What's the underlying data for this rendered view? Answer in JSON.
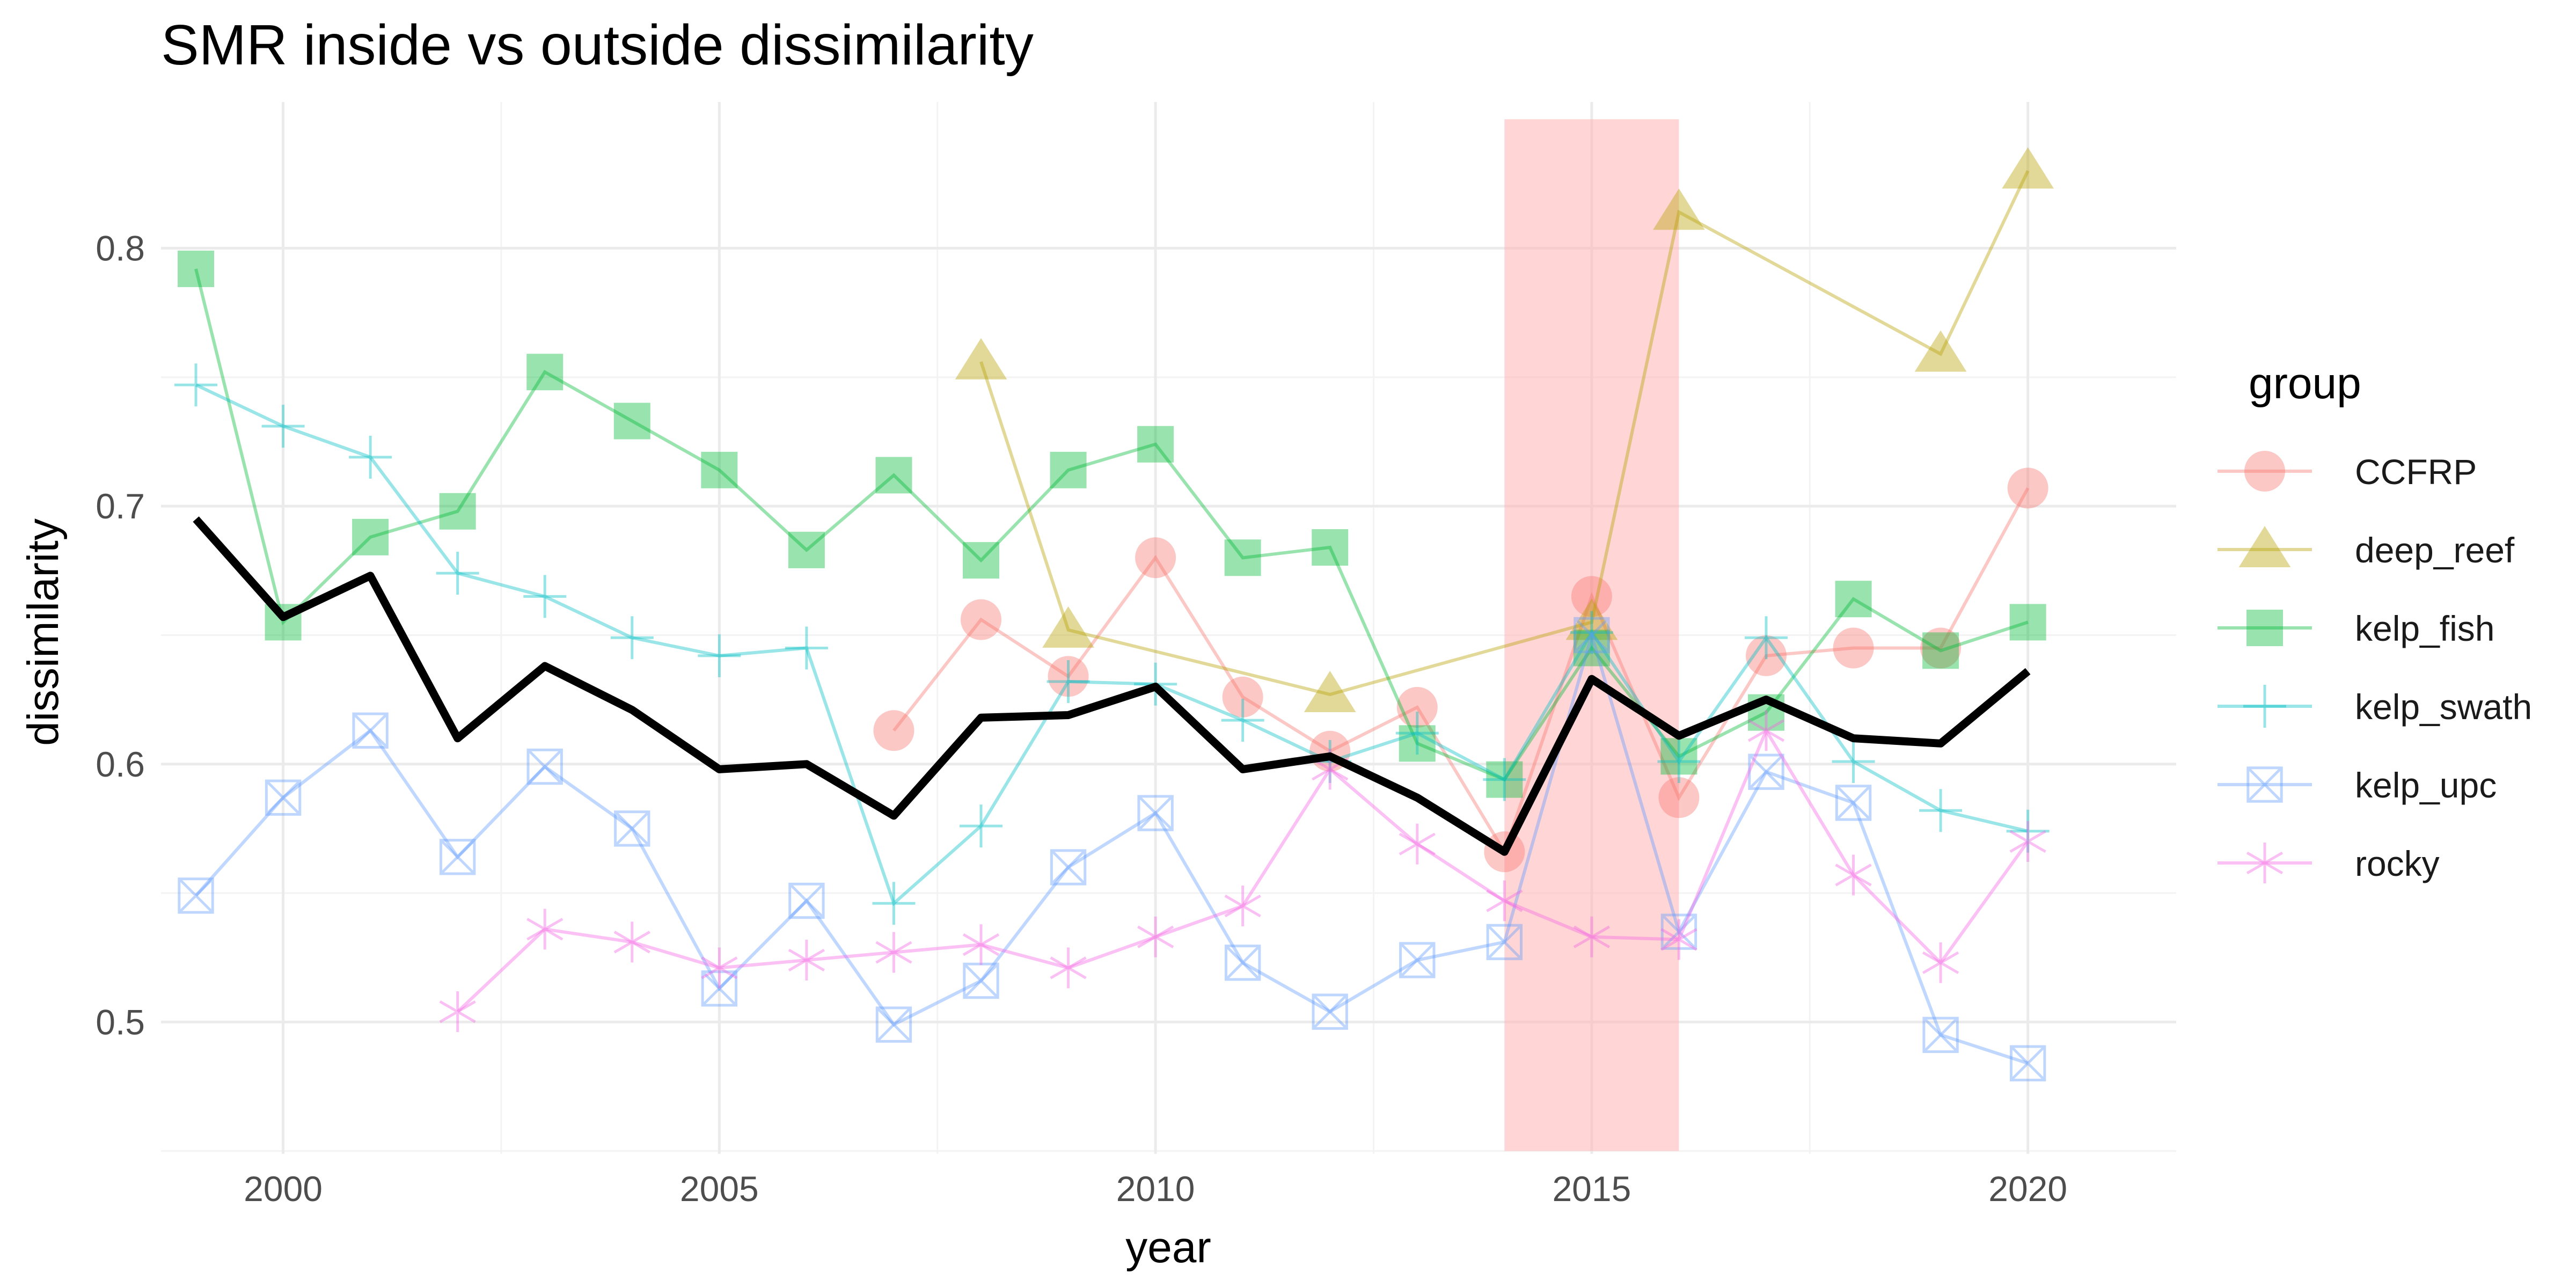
{
  "chart_data": {
    "type": "line",
    "title": "SMR inside vs outside dissimilarity",
    "xlabel": "year",
    "ylabel": "dissimilarity",
    "xlim": [
      1998.6,
      2021.7
    ],
    "ylim": [
      0.4489,
      0.8567
    ],
    "x_ticks": [
      2000,
      2005,
      2010,
      2015,
      2020
    ],
    "y_ticks": [
      0.5,
      0.6,
      0.7,
      0.8
    ],
    "grid": true,
    "legend_title": "group",
    "legend_position": "right",
    "shaded_region": {
      "x_start": 2014,
      "x_end": 2016,
      "color": "#ffb3b3"
    },
    "series": [
      {
        "name": "CCFRP",
        "color": "#F8766D",
        "shape": "circle",
        "points": [
          [
            2007,
            0.613
          ],
          [
            2008,
            0.656
          ],
          [
            2009,
            0.634
          ],
          [
            2010,
            0.68
          ],
          [
            2011,
            0.626
          ],
          [
            2012,
            0.605
          ],
          [
            2013,
            0.622
          ],
          [
            2014,
            0.566
          ],
          [
            2015,
            0.665
          ],
          [
            2016,
            0.587
          ],
          [
            2017,
            0.642
          ],
          [
            2018,
            0.645
          ],
          [
            2019,
            0.645
          ],
          [
            2020,
            0.707
          ]
        ]
      },
      {
        "name": "deep_reef",
        "color": "#B79F00",
        "shape": "triangle",
        "points": [
          [
            2008,
            0.756
          ],
          [
            2009,
            0.652
          ],
          [
            2012,
            0.627
          ],
          [
            2015,
            0.655
          ],
          [
            2016,
            0.814
          ],
          [
            2019,
            0.759
          ],
          [
            2020,
            0.83
          ]
        ]
      },
      {
        "name": "kelp_fish",
        "color": "#00BA38",
        "shape": "square",
        "points": [
          [
            1999,
            0.792
          ],
          [
            2000,
            0.655
          ],
          [
            2001,
            0.688
          ],
          [
            2002,
            0.698
          ],
          [
            2003,
            0.752
          ],
          [
            2004,
            0.733
          ],
          [
            2005,
            0.714
          ],
          [
            2006,
            0.683
          ],
          [
            2007,
            0.712
          ],
          [
            2008,
            0.679
          ],
          [
            2009,
            0.714
          ],
          [
            2010,
            0.724
          ],
          [
            2011,
            0.68
          ],
          [
            2012,
            0.684
          ],
          [
            2013,
            0.608
          ],
          [
            2014,
            0.594
          ],
          [
            2015,
            0.645
          ],
          [
            2016,
            0.603
          ],
          [
            2017,
            0.62
          ],
          [
            2018,
            0.664
          ],
          [
            2019,
            0.644
          ],
          [
            2020,
            0.655
          ]
        ]
      },
      {
        "name": "kelp_swath",
        "color": "#00BFC4",
        "shape": "plus",
        "points": [
          [
            1999,
            0.747
          ],
          [
            2000,
            0.731
          ],
          [
            2001,
            0.719
          ],
          [
            2002,
            0.674
          ],
          [
            2003,
            0.665
          ],
          [
            2004,
            0.649
          ],
          [
            2005,
            0.642
          ],
          [
            2006,
            0.645
          ],
          [
            2007,
            0.546
          ],
          [
            2008,
            0.576
          ],
          [
            2009,
            0.632
          ],
          [
            2010,
            0.631
          ],
          [
            2011,
            0.617
          ],
          [
            2012,
            0.601
          ],
          [
            2013,
            0.612
          ],
          [
            2014,
            0.594
          ],
          [
            2015,
            0.651
          ],
          [
            2016,
            0.601
          ],
          [
            2017,
            0.649
          ],
          [
            2018,
            0.601
          ],
          [
            2019,
            0.582
          ],
          [
            2020,
            0.574
          ]
        ]
      },
      {
        "name": "kelp_upc",
        "color": "#619CFF",
        "shape": "square-x",
        "points": [
          [
            1999,
            0.549
          ],
          [
            2000,
            0.587
          ],
          [
            2001,
            0.613
          ],
          [
            2002,
            0.564
          ],
          [
            2003,
            0.599
          ],
          [
            2004,
            0.575
          ],
          [
            2005,
            0.513
          ],
          [
            2006,
            0.547
          ],
          [
            2007,
            0.499
          ],
          [
            2008,
            0.516
          ],
          [
            2009,
            0.56
          ],
          [
            2010,
            0.581
          ],
          [
            2011,
            0.523
          ],
          [
            2012,
            0.504
          ],
          [
            2013,
            0.524
          ],
          [
            2014,
            0.531
          ],
          [
            2015,
            0.65
          ],
          [
            2016,
            0.535
          ],
          [
            2017,
            0.597
          ],
          [
            2018,
            0.585
          ],
          [
            2019,
            0.495
          ],
          [
            2020,
            0.484
          ]
        ]
      },
      {
        "name": "rocky",
        "color": "#F564E3",
        "shape": "asterisk",
        "points": [
          [
            2002,
            0.504
          ],
          [
            2003,
            0.536
          ],
          [
            2004,
            0.531
          ],
          [
            2005,
            0.521
          ],
          [
            2006,
            0.524
          ],
          [
            2007,
            0.527
          ],
          [
            2008,
            0.53
          ],
          [
            2009,
            0.521
          ],
          [
            2010,
            0.533
          ],
          [
            2011,
            0.545
          ],
          [
            2012,
            0.598
          ],
          [
            2013,
            0.569
          ],
          [
            2014,
            0.547
          ],
          [
            2015,
            0.533
          ],
          [
            2016,
            0.532
          ],
          [
            2017,
            0.613
          ],
          [
            2018,
            0.557
          ],
          [
            2019,
            0.523
          ],
          [
            2020,
            0.57
          ]
        ]
      }
    ],
    "mean_line": {
      "color": "#000000",
      "points": [
        [
          1999,
          0.695
        ],
        [
          2000,
          0.657
        ],
        [
          2001,
          0.673
        ],
        [
          2002,
          0.61
        ],
        [
          2003,
          0.638
        ],
        [
          2004,
          0.621
        ],
        [
          2005,
          0.598
        ],
        [
          2006,
          0.6
        ],
        [
          2007,
          0.58
        ],
        [
          2008,
          0.618
        ],
        [
          2009,
          0.619
        ],
        [
          2010,
          0.63
        ],
        [
          2011,
          0.598
        ],
        [
          2012,
          0.603
        ],
        [
          2013,
          0.587
        ],
        [
          2014,
          0.566
        ],
        [
          2015,
          0.633
        ],
        [
          2016,
          0.611
        ],
        [
          2017,
          0.625
        ],
        [
          2018,
          0.61
        ],
        [
          2019,
          0.608
        ],
        [
          2020,
          0.636
        ]
      ]
    }
  }
}
